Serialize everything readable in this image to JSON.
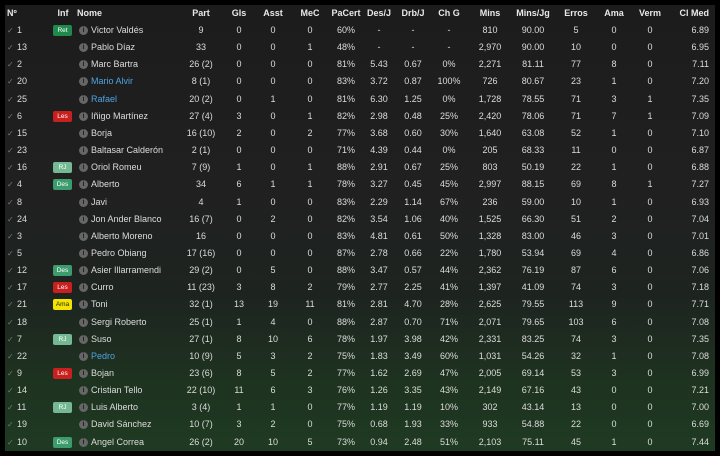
{
  "headers": [
    "Nº",
    "Inf",
    "Nome",
    "Part",
    "Gls",
    "Asst",
    "MeC",
    "PaCert",
    "Des/J",
    "Drb/J",
    "Ch G",
    "Mins",
    "Mins/Jg",
    "Erros",
    "Ama",
    "Verm",
    "Cl Med"
  ],
  "badge_colors": {
    "Ret": "#1f8a4c",
    "Les": "#c8201e",
    "RJ": "#74b894",
    "Des": "#3d9c6e",
    "Ama": "#f2e400"
  },
  "link_color": "#4ea3e0",
  "rows": [
    {
      "num": "1",
      "inf": "Ret",
      "name": "Victor Valdés",
      "link": false,
      "vals": [
        "9",
        "0",
        "0",
        "0",
        "60%",
        "-",
        "-",
        "-",
        "810",
        "90.00",
        "5",
        "0",
        "0",
        "6.89"
      ]
    },
    {
      "num": "13",
      "inf": "",
      "name": "Pablo Díaz",
      "link": false,
      "vals": [
        "33",
        "0",
        "0",
        "1",
        "48%",
        "-",
        "-",
        "-",
        "2,970",
        "90.00",
        "10",
        "0",
        "0",
        "6.95"
      ]
    },
    {
      "num": "2",
      "inf": "",
      "name": "Marc Bartra",
      "link": false,
      "vals": [
        "26 (2)",
        "0",
        "0",
        "0",
        "81%",
        "5.43",
        "0.67",
        "0%",
        "2,271",
        "81.11",
        "77",
        "8",
        "0",
        "7.11"
      ]
    },
    {
      "num": "20",
      "inf": "",
      "name": "Mario Alvir",
      "link": true,
      "vals": [
        "8 (1)",
        "0",
        "0",
        "0",
        "83%",
        "3.72",
        "0.87",
        "100%",
        "726",
        "80.67",
        "23",
        "1",
        "0",
        "7.20"
      ]
    },
    {
      "num": "25",
      "inf": "",
      "name": "Rafael",
      "link": true,
      "vals": [
        "20 (2)",
        "0",
        "1",
        "0",
        "81%",
        "6.30",
        "1.25",
        "0%",
        "1,728",
        "78.55",
        "71",
        "3",
        "1",
        "7.35"
      ]
    },
    {
      "num": "6",
      "inf": "Les",
      "name": "Iñigo Martínez",
      "link": false,
      "vals": [
        "27 (4)",
        "3",
        "0",
        "1",
        "82%",
        "2.98",
        "0.48",
        "25%",
        "2,420",
        "78.06",
        "71",
        "7",
        "1",
        "7.09"
      ]
    },
    {
      "num": "15",
      "inf": "",
      "name": "Borja",
      "link": false,
      "vals": [
        "16 (10)",
        "2",
        "0",
        "2",
        "77%",
        "3.68",
        "0.60",
        "30%",
        "1,640",
        "63.08",
        "52",
        "1",
        "0",
        "7.10"
      ]
    },
    {
      "num": "23",
      "inf": "",
      "name": "Baltasar Calderón",
      "link": false,
      "vals": [
        "2 (1)",
        "0",
        "0",
        "0",
        "71%",
        "4.39",
        "0.44",
        "0%",
        "205",
        "68.33",
        "11",
        "0",
        "0",
        "6.87"
      ]
    },
    {
      "num": "16",
      "inf": "RJ",
      "name": "Oriol Romeu",
      "link": false,
      "vals": [
        "7 (9)",
        "1",
        "0",
        "1",
        "88%",
        "2.91",
        "0.67",
        "25%",
        "803",
        "50.19",
        "22",
        "1",
        "0",
        "6.88"
      ]
    },
    {
      "num": "4",
      "inf": "Des",
      "name": "Alberto",
      "link": false,
      "vals": [
        "34",
        "6",
        "1",
        "1",
        "78%",
        "3.27",
        "0.45",
        "45%",
        "2,997",
        "88.15",
        "69",
        "8",
        "1",
        "7.27"
      ]
    },
    {
      "num": "8",
      "inf": "",
      "name": "Javi",
      "link": false,
      "vals": [
        "4",
        "1",
        "0",
        "0",
        "83%",
        "2.29",
        "1.14",
        "67%",
        "236",
        "59.00",
        "10",
        "1",
        "0",
        "6.93"
      ]
    },
    {
      "num": "24",
      "inf": "",
      "name": "Jon Ander Blanco",
      "link": false,
      "vals": [
        "16 (7)",
        "0",
        "2",
        "0",
        "82%",
        "3.54",
        "1.06",
        "40%",
        "1,525",
        "66.30",
        "51",
        "2",
        "0",
        "7.04"
      ]
    },
    {
      "num": "3",
      "inf": "",
      "name": "Alberto Moreno",
      "link": false,
      "vals": [
        "16",
        "0",
        "0",
        "0",
        "83%",
        "4.81",
        "0.61",
        "50%",
        "1,328",
        "83.00",
        "46",
        "3",
        "0",
        "7.01"
      ]
    },
    {
      "num": "5",
      "inf": "",
      "name": "Pedro Obiang",
      "link": false,
      "vals": [
        "17 (16)",
        "0",
        "0",
        "0",
        "87%",
        "2.78",
        "0.66",
        "22%",
        "1,780",
        "53.94",
        "69",
        "4",
        "0",
        "6.86"
      ]
    },
    {
      "num": "12",
      "inf": "Des",
      "name": "Asier Illarramendi",
      "link": false,
      "vals": [
        "29 (2)",
        "0",
        "5",
        "0",
        "88%",
        "3.47",
        "0.57",
        "44%",
        "2,362",
        "76.19",
        "87",
        "6",
        "0",
        "7.06"
      ]
    },
    {
      "num": "17",
      "inf": "Les",
      "name": "Curro",
      "link": false,
      "vals": [
        "11 (23)",
        "3",
        "8",
        "2",
        "79%",
        "2.77",
        "2.25",
        "41%",
        "1,397",
        "41.09",
        "74",
        "3",
        "0",
        "7.18"
      ]
    },
    {
      "num": "21",
      "inf": "Ama",
      "name": "Toni",
      "link": false,
      "vals": [
        "32 (1)",
        "13",
        "19",
        "11",
        "81%",
        "2.81",
        "4.70",
        "28%",
        "2,625",
        "79.55",
        "113",
        "9",
        "0",
        "7.71"
      ]
    },
    {
      "num": "18",
      "inf": "",
      "name": "Sergi Roberto",
      "link": false,
      "vals": [
        "25 (1)",
        "1",
        "4",
        "0",
        "88%",
        "2.87",
        "0.70",
        "71%",
        "2,071",
        "79.65",
        "103",
        "6",
        "0",
        "7.08"
      ]
    },
    {
      "num": "7",
      "inf": "RJ",
      "name": "Suso",
      "link": false,
      "vals": [
        "27 (1)",
        "8",
        "10",
        "6",
        "78%",
        "1.97",
        "3.98",
        "42%",
        "2,331",
        "83.25",
        "74",
        "3",
        "0",
        "7.35"
      ]
    },
    {
      "num": "22",
      "inf": "",
      "name": "Pedro",
      "link": true,
      "vals": [
        "10 (9)",
        "5",
        "3",
        "2",
        "75%",
        "1.83",
        "3.49",
        "60%",
        "1,031",
        "54.26",
        "32",
        "1",
        "0",
        "7.08"
      ]
    },
    {
      "num": "9",
      "inf": "Les",
      "name": "Bojan",
      "link": false,
      "vals": [
        "23 (6)",
        "8",
        "5",
        "2",
        "77%",
        "1.62",
        "2.69",
        "47%",
        "2,005",
        "69.14",
        "53",
        "3",
        "0",
        "6.99"
      ]
    },
    {
      "num": "14",
      "inf": "",
      "name": "Cristian Tello",
      "link": false,
      "vals": [
        "22 (10)",
        "11",
        "6",
        "3",
        "76%",
        "1.26",
        "3.35",
        "43%",
        "2,149",
        "67.16",
        "43",
        "0",
        "0",
        "7.21"
      ]
    },
    {
      "num": "11",
      "inf": "RJ",
      "name": "Luis Alberto",
      "link": false,
      "vals": [
        "3 (4)",
        "1",
        "1",
        "0",
        "77%",
        "1.19",
        "1.19",
        "10%",
        "302",
        "43.14",
        "13",
        "0",
        "0",
        "7.00"
      ]
    },
    {
      "num": "19",
      "inf": "",
      "name": "David Sánchez",
      "link": false,
      "vals": [
        "10 (7)",
        "3",
        "2",
        "0",
        "75%",
        "0.68",
        "1.93",
        "33%",
        "933",
        "54.88",
        "22",
        "0",
        "0",
        "6.69"
      ]
    },
    {
      "num": "10",
      "inf": "Des",
      "name": "Angel Correa",
      "link": false,
      "vals": [
        "26 (2)",
        "20",
        "10",
        "5",
        "73%",
        "0.94",
        "2.48",
        "51%",
        "2,103",
        "75.11",
        "45",
        "1",
        "0",
        "7.44"
      ]
    }
  ]
}
